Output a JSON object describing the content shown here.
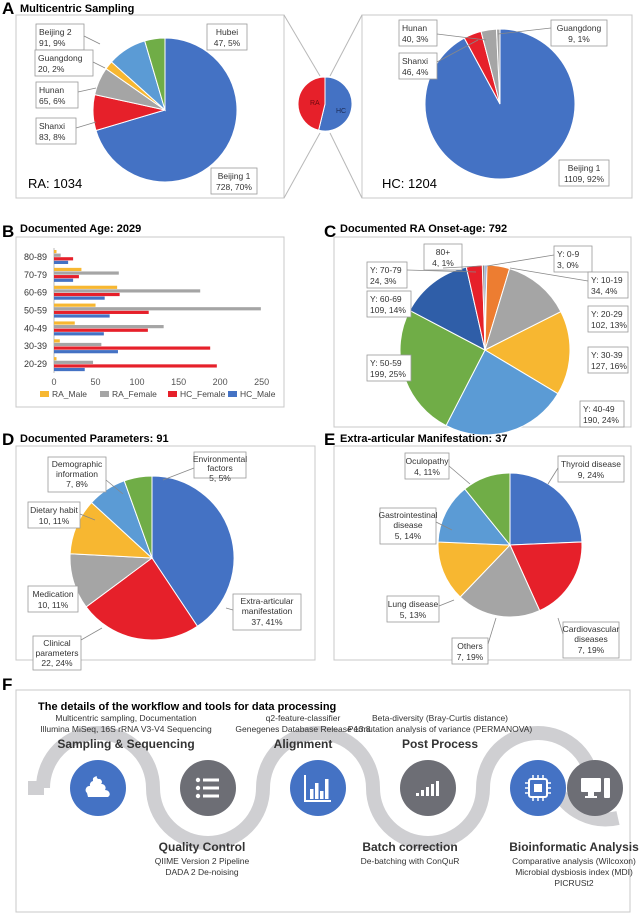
{
  "colors": {
    "blue": "#4472c4",
    "red": "#e6202a",
    "gray": "#a5a5a5",
    "orange": "#ed7d31",
    "yellow": "#f7b731",
    "green": "#70ad47",
    "lightblue": "#5b9bd5",
    "darkgray": "#6d6e75",
    "wave": "#cfcfd2"
  },
  "panels": {
    "A": {
      "letter": "A",
      "title": "Multicentric Sampling"
    },
    "B": {
      "letter": "B",
      "title": "Documented Age: 2029"
    },
    "C": {
      "letter": "C",
      "title": "Documented RA Onset-age: 792"
    },
    "D": {
      "letter": "D",
      "title": "Documented Parameters: 91"
    },
    "E": {
      "letter": "E",
      "title": "Extra-articular Manifestation: 37"
    },
    "F": {
      "letter": "F",
      "title": "The details of the workflow and tools for data processing"
    }
  },
  "chart_data": [
    {
      "id": "A-RA",
      "type": "pie",
      "title": "RA: 1034",
      "slices": [
        {
          "label": "Beijing 1",
          "value": 728,
          "text": "728, 70%",
          "color": "#4472c4"
        },
        {
          "label": "Shanxi",
          "value": 83,
          "text": "83, 8%",
          "color": "#e6202a"
        },
        {
          "label": "Hunan",
          "value": 65,
          "text": "65, 6%",
          "color": "#a5a5a5"
        },
        {
          "label": "Guangdong",
          "value": 20,
          "text": "20, 2%",
          "color": "#f7b731"
        },
        {
          "label": "Beijing 2",
          "value": 91,
          "text": "91, 9%",
          "color": "#5b9bd5"
        },
        {
          "label": "Hubei",
          "value": 47,
          "text": "47, 5%",
          "color": "#70ad47"
        }
      ]
    },
    {
      "id": "A-small",
      "type": "pie",
      "title": "",
      "slices": [
        {
          "label": "HC",
          "value": 1204,
          "color": "#4472c4"
        },
        {
          "label": "RA",
          "value": 1034,
          "color": "#e6202a"
        }
      ]
    },
    {
      "id": "A-HC",
      "type": "pie",
      "title": "HC: 1204",
      "slices": [
        {
          "label": "Beijing 1",
          "value": 1109,
          "text": "1109, 92%",
          "color": "#4472c4"
        },
        {
          "label": "Shanxi",
          "value": 46,
          "text": "46, 4%",
          "color": "#e6202a"
        },
        {
          "label": "Hunan",
          "value": 40,
          "text": "40, 3%",
          "color": "#a5a5a5"
        },
        {
          "label": "Guangdong",
          "value": 9,
          "text": "9, 1%",
          "color": "#a5a5a5"
        }
      ]
    },
    {
      "id": "B",
      "type": "bar",
      "orientation": "horizontal",
      "categories": [
        "80-89",
        "70-79",
        "60-69",
        "50-59",
        "40-49",
        "30-39",
        "20-29"
      ],
      "series": [
        {
          "name": "RA_Male",
          "color": "#f7b731",
          "values": [
            3,
            33,
            76,
            50,
            25,
            7,
            3
          ]
        },
        {
          "name": "RA_Female",
          "color": "#a5a5a5",
          "values": [
            8,
            78,
            176,
            249,
            132,
            57,
            47
          ]
        },
        {
          "name": "HC_Female",
          "color": "#e6202a",
          "values": [
            23,
            30,
            79,
            114,
            113,
            188,
            196
          ]
        },
        {
          "name": "HC_Male",
          "color": "#4472c4",
          "values": [
            17,
            23,
            61,
            67,
            60,
            77,
            37
          ]
        }
      ],
      "xticks": [
        0,
        50,
        100,
        150,
        200,
        250
      ],
      "xlim": [
        0,
        260
      ]
    },
    {
      "id": "C",
      "type": "pie",
      "title": "Documented RA Onset-age: 792",
      "slices": [
        {
          "label": "Y: 0-9",
          "text": "3, 0%",
          "value": 3,
          "color": "#4472c4"
        },
        {
          "label": "Y: 10-19",
          "text": "34, 4%",
          "value": 34,
          "color": "#ed7d31"
        },
        {
          "label": "Y: 20-29",
          "text": "102, 13%",
          "value": 102,
          "color": "#a5a5a5"
        },
        {
          "label": "Y: 30-39",
          "text": "127, 16%",
          "value": 127,
          "color": "#f7b731"
        },
        {
          "label": "Y: 40-49",
          "text": "190, 24%",
          "value": 190,
          "color": "#5b9bd5"
        },
        {
          "label": "Y: 50-59",
          "text": "199, 25%",
          "value": 199,
          "color": "#70ad47"
        },
        {
          "label": "Y: 60-69",
          "text": "109, 14%",
          "value": 109,
          "color": "#2f5ea8"
        },
        {
          "label": "Y: 70-79",
          "text": "24, 3%",
          "value": 24,
          "color": "#e6202a"
        },
        {
          "label": "80+",
          "text": "4, 1%",
          "value": 4,
          "color": "#8a8a8a"
        }
      ]
    },
    {
      "id": "D",
      "type": "pie",
      "title": "Documented Parameters: 91",
      "slices": [
        {
          "label": "Extra-articular manifestation",
          "text": "37, 41%",
          "value": 37,
          "color": "#4472c4"
        },
        {
          "label": "Clinical parameters",
          "text": "22, 24%",
          "value": 22,
          "color": "#e6202a"
        },
        {
          "label": "Medication",
          "text": "10, 11%",
          "value": 10,
          "color": "#a5a5a5"
        },
        {
          "label": "Dietary habit",
          "text": "10, 11%",
          "value": 10,
          "color": "#f7b731"
        },
        {
          "label": "Demographic information",
          "text": "7, 8%",
          "value": 7,
          "color": "#5b9bd5"
        },
        {
          "label": "Environmental factors",
          "text": "5, 5%",
          "value": 5,
          "color": "#70ad47"
        }
      ]
    },
    {
      "id": "E",
      "type": "pie",
      "title": "Extra-articular Manifestation: 37",
      "slices": [
        {
          "label": "Thyroid disease",
          "text": "9, 24%",
          "value": 9,
          "color": "#4472c4"
        },
        {
          "label": "Cardiovascular diseases",
          "text": "7, 19%",
          "value": 7,
          "color": "#e6202a"
        },
        {
          "label": "Others",
          "text": "7, 19%",
          "value": 7,
          "color": "#a5a5a5"
        },
        {
          "label": "Lung disease",
          "text": "5, 13%",
          "value": 5,
          "color": "#f7b731"
        },
        {
          "label": "Gastrointestinal disease",
          "text": "5, 14%",
          "value": 5,
          "color": "#5b9bd5"
        },
        {
          "label": "Oculopathy",
          "text": "4, 11%",
          "value": 4,
          "color": "#70ad47"
        }
      ]
    }
  ],
  "workflow": {
    "top_steps": [
      {
        "title": "Sampling & Sequencing",
        "desc1": "Multicentric sampling, Documentation",
        "desc2": "Illumina MiSeq, 16S rRNA V3-V4 Sequencing"
      },
      {
        "title": "Alignment",
        "desc1": "q2-feature-classifier",
        "desc2": "Genegenes Database Release 13.8"
      },
      {
        "title": "Post Process",
        "desc1": "Beta-diversity (Bray-Curtis distance)",
        "desc2": "Permutation analysis of variance (PERMANOVA)"
      }
    ],
    "bottom_steps": [
      {
        "title": "Quality Control",
        "desc1": "QIIME Version 2 Pipeline",
        "desc2": "DADA 2 De-noising",
        "desc3": ""
      },
      {
        "title": "Batch correction",
        "desc1": "De-batching with ConQuR",
        "desc2": "",
        "desc3": ""
      },
      {
        "title": "Bioinformatic Analysis",
        "desc1": "Comparative analysis (Wilcoxon)",
        "desc2": "Microbial dysbiosis index (MDI)",
        "desc3": "PICRUSt2"
      }
    ],
    "icons": [
      "poop-icon",
      "list-icon",
      "bar-chart-icon",
      "signal-bars-icon",
      "chip-icon",
      "computer-icon"
    ]
  }
}
